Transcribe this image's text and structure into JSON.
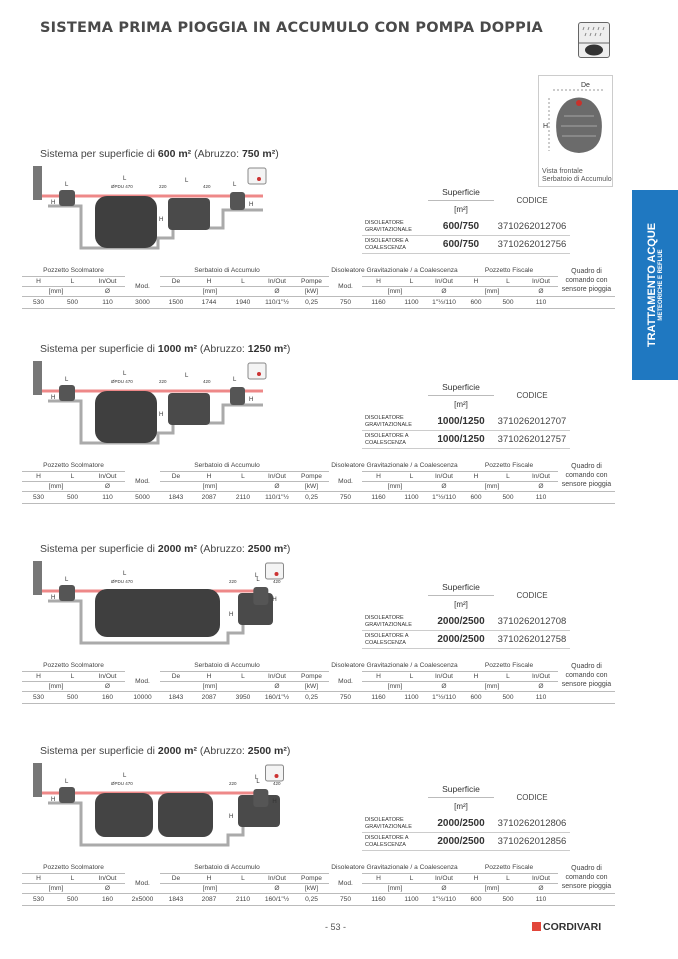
{
  "header": {
    "title": "SISTEMA PRIMA PIOGGIA IN ACCUMULO CON POMPA DOPPIA",
    "icon": "rain-tank-icon"
  },
  "front_view": {
    "label_de": "De",
    "label_h": "H",
    "caption": "Vista frontale Serbatoio di Accumulo"
  },
  "side_tab": {
    "title": "TRATTAMENTO ACQUE",
    "subtitle": "METEORICHE E REFLUE",
    "color": "#1f78c1"
  },
  "table_headers": {
    "pozzetto_scolmatore": "Pozzetto Scolmatore",
    "serbatoio": "Serbatoio di Accumulo",
    "disoleatore": "Disoleatore Gravitazionale / a Coalescenza",
    "pozzetto_fiscale": "Pozzetto Fiscale",
    "quadro": "Quadro di comando con sensore pioggia",
    "H": "H",
    "L": "L",
    "inout": "In/Out",
    "mod": "Mod.",
    "De": "De",
    "pompe": "Pompe",
    "mm": "[mm]",
    "phi": "Ø",
    "kw": "[kW]",
    "superficie": "Superficie",
    "m2": "[m²]",
    "codice": "CODICE"
  },
  "diagram_labels": {
    "L": "L",
    "H": "H",
    "pipe": "ØPDU 470",
    "d220": "220",
    "d420": "420"
  },
  "sections": [
    {
      "title_pre": "Sistema per superficie di ",
      "title_area": "600 m²",
      "title_mid": " (Abruzzo: ",
      "title_area2": "750 m²",
      "title_post": ")",
      "products": [
        {
          "name": "Disoleatore Gravitazionale",
          "superficie": "600/750",
          "codice": "3710262012706"
        },
        {
          "name": "Disoleatore a coalescenza",
          "superficie": "600/750",
          "codice": "3710262012756"
        }
      ],
      "row": [
        "530",
        "500",
        "110",
        "3000",
        "1500",
        "1744",
        "1940",
        "110/1\"½",
        "0,25",
        "750",
        "1160",
        "1100",
        "1\"½/110",
        "600",
        "500",
        "110"
      ]
    },
    {
      "title_pre": "Sistema per superficie di ",
      "title_area": "1000 m²",
      "title_mid": " (Abruzzo: ",
      "title_area2": "1250 m²",
      "title_post": ")",
      "products": [
        {
          "name": "Disoleatore Gravitazionale",
          "superficie": "1000/1250",
          "codice": "3710262012707"
        },
        {
          "name": "Disoleatore a coalescenza",
          "superficie": "1000/1250",
          "codice": "3710262012757"
        }
      ],
      "row": [
        "530",
        "500",
        "110",
        "5000",
        "1843",
        "2087",
        "2110",
        "110/1\"½",
        "0,25",
        "750",
        "1160",
        "1100",
        "1\"½/110",
        "600",
        "500",
        "110"
      ]
    },
    {
      "title_pre": "Sistema per superficie di ",
      "title_area": "2000 m²",
      "title_mid": " (Abruzzo: ",
      "title_area2": "2500 m²",
      "title_post": ")",
      "products": [
        {
          "name": "Disoleatore Gravitazionale",
          "superficie": "2000/2500",
          "codice": "3710262012708"
        },
        {
          "name": "Disoleatore a coalescenza",
          "superficie": "2000/2500",
          "codice": "3710262012758"
        }
      ],
      "row": [
        "530",
        "500",
        "160",
        "10000",
        "1843",
        "2087",
        "3950",
        "160/1\"½",
        "0,25",
        "750",
        "1160",
        "1100",
        "1\"½/110",
        "600",
        "500",
        "110"
      ]
    },
    {
      "title_pre": "Sistema per superficie di ",
      "title_area": "2000 m²",
      "title_mid": " (Abruzzo: ",
      "title_area2": "2500 m²",
      "title_post": ")",
      "products": [
        {
          "name": "Disoleatore Gravitazionale",
          "superficie": "2000/2500",
          "codice": "3710262012806"
        },
        {
          "name": "Disoleatore a coalescenza",
          "superficie": "2000/2500",
          "codice": "3710262012856"
        }
      ],
      "row": [
        "530",
        "500",
        "160",
        "2x5000",
        "1843",
        "2087",
        "2110",
        "160/1\"½",
        "0,25",
        "750",
        "1160",
        "1100",
        "1\"½/110",
        "600",
        "500",
        "110"
      ]
    }
  ],
  "footer": {
    "page": "- 53 -",
    "brand": "CORDIVARI",
    "brand_color": "#e2463a"
  }
}
